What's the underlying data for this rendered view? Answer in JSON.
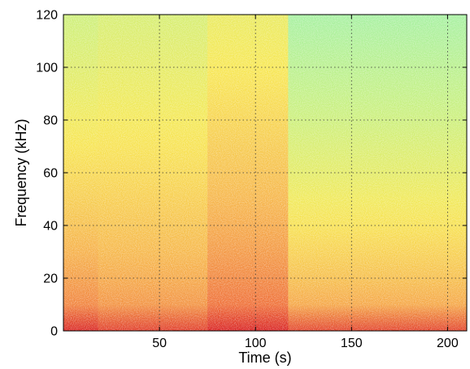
{
  "chart_data": {
    "type": "heatmap",
    "title": "",
    "xlabel": "Time (s)",
    "ylabel": "Frequency (kHz)",
    "xlim": [
      0,
      210
    ],
    "ylim": [
      0,
      120
    ],
    "xticks": [
      50,
      100,
      150,
      200
    ],
    "yticks": [
      0,
      20,
      40,
      60,
      80,
      100,
      120
    ],
    "grid": true,
    "colormap": [
      "#d82020",
      "#ee6a35",
      "#f6b248",
      "#f7e852",
      "#c8f07e",
      "#9ef0a8"
    ],
    "time_segments": [
      {
        "t_start": 0,
        "t_end": 18,
        "level_low": 0.16,
        "level_high": 0.78
      },
      {
        "t_start": 18,
        "t_end": 75,
        "level_low": 0.22,
        "level_high": 0.74
      },
      {
        "t_start": 75,
        "t_end": 117,
        "level_low": 0.12,
        "level_high": 0.66
      },
      {
        "t_start": 117,
        "t_end": 210,
        "level_low": 0.24,
        "level_high": 0.96
      }
    ]
  }
}
